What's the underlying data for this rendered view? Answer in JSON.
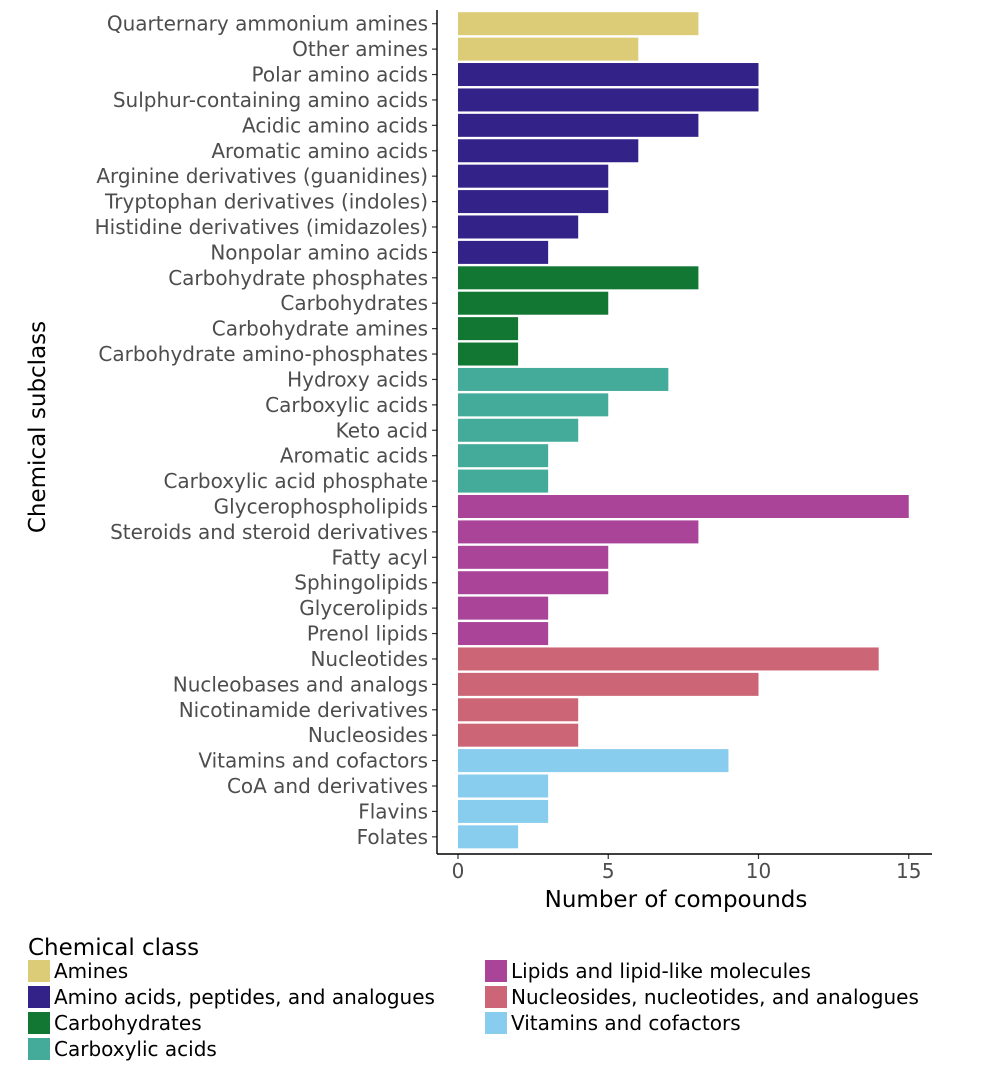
{
  "chart_data": {
    "type": "bar",
    "orientation": "horizontal",
    "xlabel": "Number of compounds",
    "ylabel": "Chemical subclass",
    "xlim": [
      0,
      15.8
    ],
    "xticks": [
      0,
      5,
      10,
      15
    ],
    "grid": false,
    "legend": {
      "title": "Chemical class",
      "placement": "bottom",
      "columns": 2
    },
    "classes": [
      {
        "name": "Amines",
        "color": "#DDCC77"
      },
      {
        "name": "Amino acids, peptides, and analogues",
        "color": "#332288"
      },
      {
        "name": "Carbohydrates",
        "color": "#117733"
      },
      {
        "name": "Carboxylic acids",
        "color": "#44AA99"
      },
      {
        "name": "Lipids and lipid-like molecules",
        "color": "#AA4499"
      },
      {
        "name": "Nucleosides, nucleotides, and analogues",
        "color": "#CC6677"
      },
      {
        "name": "Vitamins and cofactors",
        "color": "#88CCEE"
      }
    ],
    "bars": [
      {
        "category": "Quarternary ammonium amines",
        "value": 8,
        "class": 0
      },
      {
        "category": "Other amines",
        "value": 6,
        "class": 0
      },
      {
        "category": "Polar amino acids",
        "value": 10,
        "class": 1
      },
      {
        "category": "Sulphur-containing amino acids",
        "value": 10,
        "class": 1
      },
      {
        "category": "Acidic amino acids",
        "value": 8,
        "class": 1
      },
      {
        "category": "Aromatic amino acids",
        "value": 6,
        "class": 1
      },
      {
        "category": "Arginine derivatives (guanidines)",
        "value": 5,
        "class": 1
      },
      {
        "category": "Tryptophan derivatives (indoles)",
        "value": 5,
        "class": 1
      },
      {
        "category": "Histidine derivatives (imidazoles)",
        "value": 4,
        "class": 1
      },
      {
        "category": "Nonpolar amino acids",
        "value": 3,
        "class": 1
      },
      {
        "category": "Carbohydrate phosphates",
        "value": 8,
        "class": 2
      },
      {
        "category": "Carbohydrates",
        "value": 5,
        "class": 2
      },
      {
        "category": "Carbohydrate amines",
        "value": 2,
        "class": 2
      },
      {
        "category": "Carbohydrate amino-phosphates",
        "value": 2,
        "class": 2
      },
      {
        "category": "Hydroxy acids",
        "value": 7,
        "class": 3
      },
      {
        "category": "Carboxylic acids",
        "value": 5,
        "class": 3
      },
      {
        "category": "Keto acid",
        "value": 4,
        "class": 3
      },
      {
        "category": "Aromatic acids",
        "value": 3,
        "class": 3
      },
      {
        "category": "Carboxylic acid phosphate",
        "value": 3,
        "class": 3
      },
      {
        "category": "Glycerophospholipids",
        "value": 15,
        "class": 4
      },
      {
        "category": "Steroids and steroid derivatives",
        "value": 8,
        "class": 4
      },
      {
        "category": "Fatty acyl",
        "value": 5,
        "class": 4
      },
      {
        "category": "Sphingolipids",
        "value": 5,
        "class": 4
      },
      {
        "category": "Glycerolipids",
        "value": 3,
        "class": 4
      },
      {
        "category": "Prenol lipids",
        "value": 3,
        "class": 4
      },
      {
        "category": "Nucleotides",
        "value": 14,
        "class": 5
      },
      {
        "category": "Nucleobases and analogs",
        "value": 10,
        "class": 5
      },
      {
        "category": "Nicotinamide derivatives",
        "value": 4,
        "class": 5
      },
      {
        "category": "Nucleosides",
        "value": 4,
        "class": 5
      },
      {
        "category": "Vitamins and cofactors",
        "value": 9,
        "class": 6
      },
      {
        "category": "CoA and derivatives",
        "value": 3,
        "class": 6
      },
      {
        "category": "Flavins",
        "value": 3,
        "class": 6
      },
      {
        "category": "Folates",
        "value": 2,
        "class": 6
      }
    ]
  }
}
